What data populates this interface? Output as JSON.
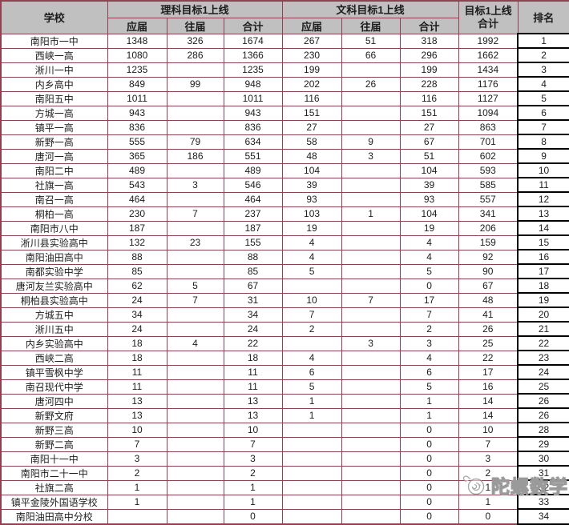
{
  "colors": {
    "border": "#8e4150",
    "header_bg": "#c0c0c0",
    "rank_border": "#000000"
  },
  "table": {
    "headers": {
      "school": "学校",
      "science_group": "理科目标1上线",
      "liberal_group": "文科目标1上线",
      "total_top": "目标1上线",
      "total_bottom": "合计",
      "rank": "排名",
      "sub": [
        "应届",
        "往届",
        "合计"
      ]
    },
    "rows": [
      [
        "南阳市一中",
        "1348",
        "326",
        "1674",
        "267",
        "51",
        "318",
        "1992",
        "1"
      ],
      [
        "西峡一高",
        "1080",
        "286",
        "1366",
        "230",
        "66",
        "296",
        "1662",
        "2"
      ],
      [
        "淅川一中",
        "1235",
        "",
        "1235",
        "199",
        "",
        "199",
        "1434",
        "3"
      ],
      [
        "内乡高中",
        "849",
        "99",
        "948",
        "202",
        "26",
        "228",
        "1176",
        "4"
      ],
      [
        "南阳五中",
        "1011",
        "",
        "1011",
        "116",
        "",
        "116",
        "1127",
        "5"
      ],
      [
        "方城一高",
        "943",
        "",
        "943",
        "151",
        "",
        "151",
        "1094",
        "6"
      ],
      [
        "镇平一高",
        "836",
        "",
        "836",
        "27",
        "",
        "27",
        "863",
        "7"
      ],
      [
        "新野一高",
        "555",
        "79",
        "634",
        "58",
        "9",
        "67",
        "701",
        "8"
      ],
      [
        "唐河一高",
        "365",
        "186",
        "551",
        "48",
        "3",
        "51",
        "602",
        "9"
      ],
      [
        "南阳二中",
        "489",
        "",
        "489",
        "104",
        "",
        "104",
        "593",
        "10"
      ],
      [
        "社旗一高",
        "543",
        "3",
        "546",
        "39",
        "",
        "39",
        "585",
        "11"
      ],
      [
        "南召一高",
        "464",
        "",
        "464",
        "93",
        "",
        "93",
        "557",
        "12"
      ],
      [
        "桐柏一高",
        "230",
        "7",
        "237",
        "103",
        "1",
        "104",
        "341",
        "13"
      ],
      [
        "南阳市八中",
        "187",
        "",
        "187",
        "19",
        "",
        "19",
        "206",
        "14"
      ],
      [
        "淅川县实验高中",
        "132",
        "23",
        "155",
        "4",
        "",
        "4",
        "159",
        "15"
      ],
      [
        "南阳油田高中",
        "88",
        "",
        "88",
        "4",
        "",
        "4",
        "92",
        "16"
      ],
      [
        "南都实验中学",
        "85",
        "",
        "85",
        "5",
        "",
        "5",
        "90",
        "17"
      ],
      [
        "唐河友兰实验高中",
        "62",
        "5",
        "67",
        "",
        "",
        "0",
        "67",
        "18"
      ],
      [
        "桐柏县实验高中",
        "24",
        "7",
        "31",
        "10",
        "7",
        "17",
        "48",
        "19"
      ],
      [
        "方城五中",
        "34",
        "",
        "34",
        "7",
        "",
        "7",
        "41",
        "20"
      ],
      [
        "淅川五中",
        "24",
        "",
        "24",
        "2",
        "",
        "2",
        "26",
        "21"
      ],
      [
        "内乡实验高中",
        "18",
        "4",
        "22",
        "",
        "3",
        "3",
        "25",
        "22"
      ],
      [
        "西峡二高",
        "18",
        "",
        "18",
        "4",
        "",
        "4",
        "22",
        "23"
      ],
      [
        "镇平雪枫中学",
        "11",
        "",
        "11",
        "6",
        "",
        "6",
        "17",
        "24"
      ],
      [
        "南召现代中学",
        "11",
        "",
        "11",
        "5",
        "",
        "5",
        "16",
        "25"
      ],
      [
        "唐河四中",
        "13",
        "",
        "13",
        "1",
        "",
        "1",
        "14",
        "26"
      ],
      [
        "新野文府",
        "13",
        "",
        "13",
        "1",
        "",
        "1",
        "14",
        "26"
      ],
      [
        "新野三高",
        "10",
        "",
        "10",
        "",
        "",
        "0",
        "10",
        "28"
      ],
      [
        "新野二高",
        "7",
        "",
        "7",
        "",
        "",
        "0",
        "7",
        "29"
      ],
      [
        "南阳十一中",
        "3",
        "",
        "3",
        "",
        "",
        "0",
        "3",
        "30"
      ],
      [
        "南阳市二十一中",
        "2",
        "",
        "2",
        "",
        "",
        "0",
        "2",
        "31"
      ],
      [
        "社旗二高",
        "1",
        "",
        "1",
        "",
        "",
        "0",
        "1",
        "32"
      ],
      [
        "镇平金陵外国语学校",
        "1",
        "",
        "1",
        "",
        "",
        "0",
        "1",
        "33"
      ],
      [
        "南阳油田高中分校",
        "",
        "",
        "0",
        "",
        "",
        "0",
        "0",
        "34"
      ]
    ]
  },
  "watermark": {
    "text": "陀螺数学"
  }
}
